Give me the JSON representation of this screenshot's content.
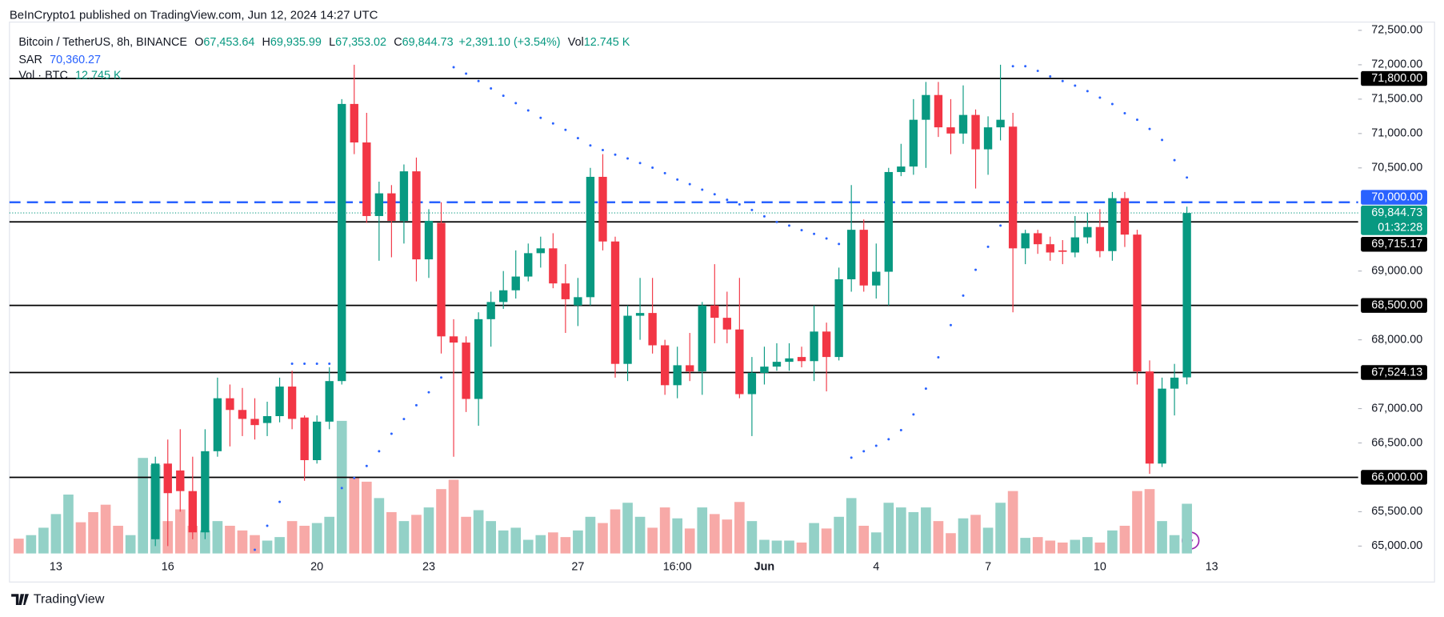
{
  "header": {
    "published": "BeInCrypto1 published on TradingView.com, Jun 12, 2024 14:27 UTC"
  },
  "footer": {
    "brand": "TradingView"
  },
  "chart_data": {
    "type": "candlestick",
    "legend": {
      "symbol": "Bitcoin / TetherUS, 8h, BINANCE",
      "o_key": "O",
      "o": "67,453.64",
      "h_key": "H",
      "h": "69,935.99",
      "l_key": "L",
      "l": "67,353.02",
      "c_key": "C",
      "c": "69,844.73",
      "change": "+2,391.10 (+3.54%)",
      "vol_key": "Vol",
      "vol": "12.745 K",
      "sar_key": "SAR",
      "sar": "70,360.27",
      "vol_series_key": "Vol · BTC",
      "vol_series": "12.745 K"
    },
    "up_color": "#089981",
    "down_color": "#f23645",
    "volume_up_color": "#93d1c7",
    "volume_down_color": "#f7a9a7",
    "sar_color": "#2962ff",
    "categories": [
      null,
      null,
      null,
      "13",
      null,
      null,
      null,
      null,
      null,
      null,
      null,
      null,
      "16",
      null,
      null,
      null,
      null,
      null,
      null,
      null,
      null,
      null,
      null,
      null,
      "20",
      null,
      null,
      null,
      null,
      null,
      null,
      null,
      null,
      "23",
      null,
      null,
      null,
      null,
      null,
      null,
      null,
      null,
      null,
      null,
      null,
      "27",
      null,
      null,
      null,
      null,
      null,
      null,
      null,
      "16:00",
      null,
      null,
      null,
      null,
      null,
      null,
      "Jun",
      null,
      null,
      null,
      null,
      null,
      null,
      null,
      null,
      "4",
      null,
      null,
      null,
      null,
      null,
      null,
      null,
      null,
      "7",
      null,
      null,
      null,
      null,
      null,
      null,
      null,
      null,
      "10",
      null,
      null,
      null,
      null,
      null,
      null,
      null,
      null,
      "13"
    ],
    "open": [
      null,
      null,
      null,
      null,
      null,
      null,
      null,
      null,
      null,
      null,
      null,
      65100,
      66200,
      66100,
      65800,
      65200,
      66380,
      67150,
      66980,
      66850,
      66790,
      66890,
      67320,
      66870,
      66250,
      66810,
      67400,
      71430,
      70870,
      69800,
      70130,
      69730,
      70450,
      69170,
      69700,
      68050,
      67960,
      67140,
      68300,
      68550,
      68720,
      68920,
      69260,
      69330,
      68820,
      68500,
      68620,
      70370,
      69430,
      67650,
      68350,
      68390,
      67920,
      67340,
      67630,
      67540,
      68500,
      68320,
      68150,
      67210,
      67520,
      67610,
      67680,
      67750,
      67690,
      68120,
      67750,
      68880,
      69600,
      68790,
      68990,
      70440,
      70520,
      71200,
      71560,
      71090,
      71000,
      71270,
      70770,
      71090,
      71100,
      69330,
      69550,
      69390,
      69300,
      69270,
      69490,
      69640,
      69290,
      70060,
      69530,
      67540,
      66200,
      67290,
      67453.64,
      null,
      null
    ],
    "high": [
      null,
      null,
      null,
      null,
      null,
      null,
      null,
      null,
      null,
      null,
      null,
      66300,
      66550,
      66700,
      66300,
      66700,
      67450,
      67350,
      67300,
      67150,
      67100,
      67450,
      67550,
      66900,
      66900,
      67600,
      71500,
      72000,
      71300,
      70300,
      70250,
      70550,
      70650,
      69900,
      70000,
      68300,
      68050,
      68400,
      68700,
      69000,
      69300,
      69400,
      69500,
      69550,
      69100,
      68900,
      70500,
      70700,
      69500,
      68500,
      68900,
      68900,
      68000,
      67900,
      68100,
      68550,
      69100,
      68700,
      68900,
      67750,
      67900,
      67950,
      67950,
      67900,
      68500,
      68250,
      69050,
      70250,
      69750,
      69400,
      70500,
      70850,
      71500,
      71750,
      71750,
      71500,
      71700,
      71350,
      71250,
      72000,
      71300,
      69600,
      69600,
      69500,
      69450,
      69800,
      69850,
      69900,
      70150,
      70150,
      69600,
      67700,
      67450,
      67650,
      69935.99,
      null,
      null
    ],
    "low": [
      null,
      null,
      null,
      null,
      null,
      null,
      null,
      null,
      null,
      null,
      null,
      65000,
      65000,
      65500,
      65100,
      65100,
      66300,
      66450,
      66600,
      66550,
      66600,
      66800,
      66700,
      65950,
      66200,
      66700,
      67350,
      70700,
      69700,
      69150,
      69200,
      69400,
      68850,
      68900,
      67800,
      66300,
      66950,
      66750,
      67900,
      68450,
      68600,
      68850,
      69050,
      68750,
      68100,
      68200,
      68500,
      69300,
      67450,
      67400,
      68000,
      67800,
      67200,
      67150,
      67400,
      67200,
      67950,
      67950,
      67150,
      66600,
      67350,
      67550,
      67550,
      67600,
      67400,
      67250,
      67700,
      68700,
      68700,
      68600,
      68500,
      70380,
      70400,
      70500,
      70950,
      70700,
      70850,
      70200,
      70400,
      70900,
      68400,
      69100,
      69250,
      69150,
      69100,
      69200,
      69400,
      69200,
      69150,
      69350,
      67350,
      66050,
      66150,
      66900,
      67353.02,
      null,
      null
    ],
    "close": [
      null,
      null,
      null,
      null,
      null,
      null,
      null,
      null,
      null,
      null,
      null,
      66200,
      65770,
      65800,
      65200,
      66380,
      67150,
      66980,
      66850,
      66760,
      66890,
      67320,
      66850,
      66250,
      66810,
      67400,
      71430,
      70870,
      69800,
      70130,
      69730,
      70450,
      69170,
      69730,
      68050,
      67960,
      67140,
      68300,
      68550,
      68720,
      68920,
      69260,
      69330,
      68820,
      68590,
      68620,
      70370,
      69430,
      67650,
      68350,
      68390,
      67920,
      67340,
      67630,
      67540,
      68500,
      68320,
      68150,
      67210,
      67520,
      67610,
      67680,
      67730,
      67690,
      68120,
      67750,
      68880,
      69600,
      68790,
      68990,
      70440,
      70520,
      71200,
      71560,
      71090,
      71000,
      71270,
      70770,
      71090,
      71200,
      69330,
      69550,
      69390,
      69270,
      69280,
      69490,
      69640,
      69290,
      70060,
      69530,
      67540,
      66200,
      67290,
      67450,
      69844.73,
      null,
      null
    ],
    "volume": [
      3.8,
      4.7,
      6.6,
      10.1,
      15.1,
      8.0,
      10.6,
      12.5,
      7.1,
      4.7,
      24.5,
      22.7,
      8.3,
      11.3,
      7.1,
      5.9,
      8.3,
      7.1,
      5.9,
      4.7,
      3.3,
      4.2,
      8.3,
      7.1,
      7.8,
      9.4,
      34.0,
      19.4,
      18.4,
      14.2,
      10.6,
      8.3,
      9.9,
      11.8,
      16.5,
      18.9,
      9.4,
      11.1,
      8.3,
      5.9,
      6.6,
      3.5,
      4.7,
      5.4,
      4.2,
      5.9,
      9.4,
      7.8,
      11.3,
      13.0,
      9.4,
      6.6,
      11.8,
      9.0,
      6.4,
      11.8,
      10.1,
      8.7,
      13.2,
      8.3,
      3.5,
      3.3,
      3.3,
      2.8,
      7.8,
      6.4,
      9.4,
      14.2,
      7.1,
      5.4,
      13.0,
      11.8,
      10.6,
      11.8,
      8.3,
      5.2,
      9.0,
      9.9,
      6.6,
      13.0,
      16.0,
      4.0,
      4.2,
      3.3,
      2.8,
      3.5,
      4.2,
      2.8,
      5.9,
      7.1,
      16.0,
      16.5,
      8.3,
      4.7,
      12.745,
      null,
      null
    ],
    "volume_up": [
      false,
      true,
      true,
      true,
      true,
      false,
      false,
      false,
      false,
      true,
      true,
      true,
      false,
      false,
      false,
      true,
      true,
      false,
      false,
      false,
      true,
      true,
      false,
      false,
      true,
      true,
      true,
      false,
      false,
      true,
      false,
      true,
      false,
      true,
      false,
      false,
      false,
      true,
      true,
      true,
      true,
      true,
      true,
      false,
      false,
      true,
      true,
      false,
      false,
      true,
      true,
      false,
      false,
      true,
      false,
      true,
      false,
      false,
      false,
      true,
      true,
      true,
      true,
      false,
      true,
      false,
      true,
      true,
      false,
      true,
      true,
      true,
      true,
      true,
      false,
      false,
      true,
      false,
      true,
      true,
      false,
      true,
      false,
      false,
      false,
      true,
      true,
      false,
      true,
      false,
      false,
      false,
      true,
      true,
      true,
      null,
      null
    ],
    "sar": [
      null,
      null,
      null,
      null,
      null,
      null,
      null,
      null,
      null,
      null,
      null,
      null,
      null,
      null,
      null,
      null,
      null,
      null,
      null,
      64946,
      65295,
      65643,
      67652,
      67652,
      67652,
      67652,
      65844,
      65991,
      66165,
      66379,
      66634,
      66848,
      67049,
      67237,
      67451,
      71964,
      71871,
      71763,
      71656,
      71549,
      71442,
      71335,
      71228,
      71147,
      71054,
      70933,
      70826,
      70759,
      70692,
      70638,
      70571,
      70504,
      70424,
      70330,
      70263,
      70183,
      70116,
      70036,
      69969,
      69888,
      69795,
      69714,
      69661,
      69594,
      69540,
      69473,
      69393,
      66286,
      66379,
      66460,
      66554,
      66687,
      66915,
      67290,
      67746,
      68214,
      68643,
      69018,
      69353,
      69661,
      71978,
      71978,
      71911,
      71830,
      71763,
      71696,
      71616,
      71522,
      71429,
      71295,
      71201,
      71067,
      70906,
      70612,
      70360.27,
      null,
      null
    ],
    "ylim": [
      64893,
      72647
    ],
    "yticks": [
      {
        "value": 65000,
        "label": "65,000.00"
      },
      {
        "value": 65500,
        "label": "65,500.00"
      },
      {
        "value": 66500,
        "label": "66,500.00"
      },
      {
        "value": 67000,
        "label": "67,000.00"
      },
      {
        "value": 68000,
        "label": "68,000.00"
      },
      {
        "value": 69000,
        "label": "69,000.00"
      },
      {
        "value": 70500,
        "label": "70,500.00"
      },
      {
        "value": 71000,
        "label": "71,000.00"
      },
      {
        "value": 71500,
        "label": "71,500.00"
      },
      {
        "value": 72000,
        "label": "72,000.00"
      },
      {
        "value": 72500,
        "label": "72,500.00"
      }
    ],
    "grid": false,
    "levels": [
      {
        "value": 71800,
        "label": "71,800.00",
        "color": "#000000",
        "dashed": false
      },
      {
        "value": 70000,
        "label": "70,000.00",
        "color": "#2962ff",
        "dashed": true
      },
      {
        "value": 69715.17,
        "label": "69,715.17",
        "color": "#000000",
        "dashed": false
      },
      {
        "value": 68500,
        "label": "68,500.00",
        "color": "#000000",
        "dashed": false
      },
      {
        "value": 67524.13,
        "label": "67,524.13",
        "color": "#000000",
        "dashed": false
      },
      {
        "value": 66000,
        "label": "66,000.00",
        "color": "#000000",
        "dashed": false
      }
    ],
    "last_price": {
      "value": 69844.73,
      "label": "69,844.73",
      "countdown": "01:32:28",
      "color": "#089981"
    }
  }
}
